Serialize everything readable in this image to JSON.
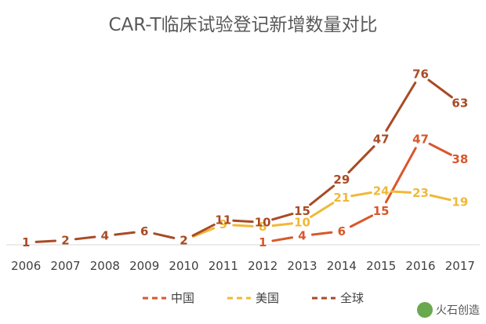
{
  "chart_data": {
    "type": "line",
    "title": "CAR-T临床试验登记新增数量对比",
    "categories": [
      "2006",
      "2007",
      "2008",
      "2009",
      "2010",
      "2011",
      "2012",
      "2013",
      "2014",
      "2015",
      "2016",
      "2017"
    ],
    "series": [
      {
        "name": "中国",
        "color": "#d9572b",
        "values": [
          null,
          null,
          null,
          null,
          null,
          null,
          1,
          4,
          6,
          15,
          47,
          38
        ]
      },
      {
        "name": "美国",
        "color": "#f0b838",
        "values": [
          null,
          null,
          null,
          null,
          2,
          9,
          8,
          10,
          21,
          24,
          23,
          19
        ]
      },
      {
        "name": "全球",
        "color": "#a84b25",
        "values": [
          1,
          2,
          4,
          6,
          2,
          11,
          10,
          15,
          29,
          47,
          76,
          63
        ]
      }
    ],
    "ylim": [
      0,
      88
    ],
    "legend_position": "bottom",
    "grid": false
  },
  "watermark": {
    "text": "火石创造",
    "icon": "wechat-icon"
  }
}
